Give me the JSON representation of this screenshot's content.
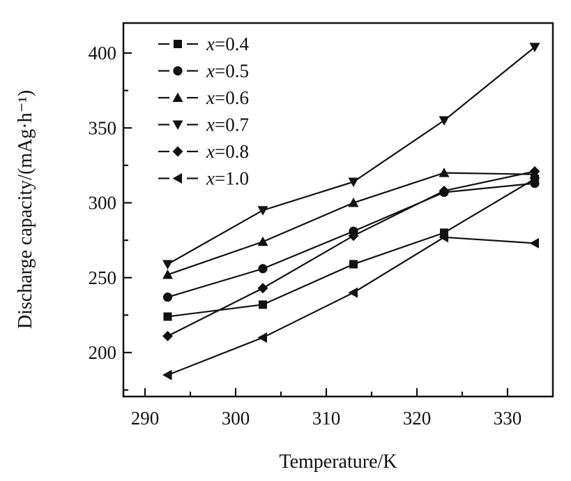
{
  "chart_data": {
    "type": "line",
    "title": "",
    "xlabel": "Temperature/K",
    "ylabel": "Discharge capacity/(mAg·h⁻¹)",
    "xlim": [
      288,
      335
    ],
    "ylim": [
      170,
      420
    ],
    "xticks": [
      290,
      300,
      310,
      320,
      330
    ],
    "yticks": [
      200,
      250,
      300,
      350,
      400
    ],
    "x": [
      292.5,
      303,
      313,
      323,
      333
    ],
    "legend_position": "top-left",
    "grid": false,
    "series": [
      {
        "name": "x=0.4",
        "var": "x",
        "value": "=0.4",
        "marker": "square",
        "values": [
          224,
          232,
          259,
          280,
          316
        ]
      },
      {
        "name": "x=0.5",
        "var": "x",
        "value": "=0.5",
        "marker": "circle",
        "values": [
          237,
          256,
          281,
          307,
          313
        ]
      },
      {
        "name": "x=0.6",
        "var": "x",
        "value": "=0.6",
        "marker": "triangle-up",
        "values": [
          252,
          274,
          300,
          320,
          319
        ]
      },
      {
        "name": "x=0.7",
        "var": "x",
        "value": "=0.7",
        "marker": "triangle-down",
        "values": [
          259,
          295,
          314,
          355,
          404
        ]
      },
      {
        "name": "x=0.8",
        "var": "x",
        "value": "=0.8",
        "marker": "diamond",
        "values": [
          211,
          243,
          278,
          308,
          321
        ]
      },
      {
        "name": "x=1.0",
        "var": "x",
        "value": "=1.0",
        "marker": "triangle-left",
        "values": [
          185,
          210,
          240,
          277,
          273
        ]
      }
    ],
    "colors": {
      "ink": "#111111",
      "background": "#ffffff"
    }
  }
}
